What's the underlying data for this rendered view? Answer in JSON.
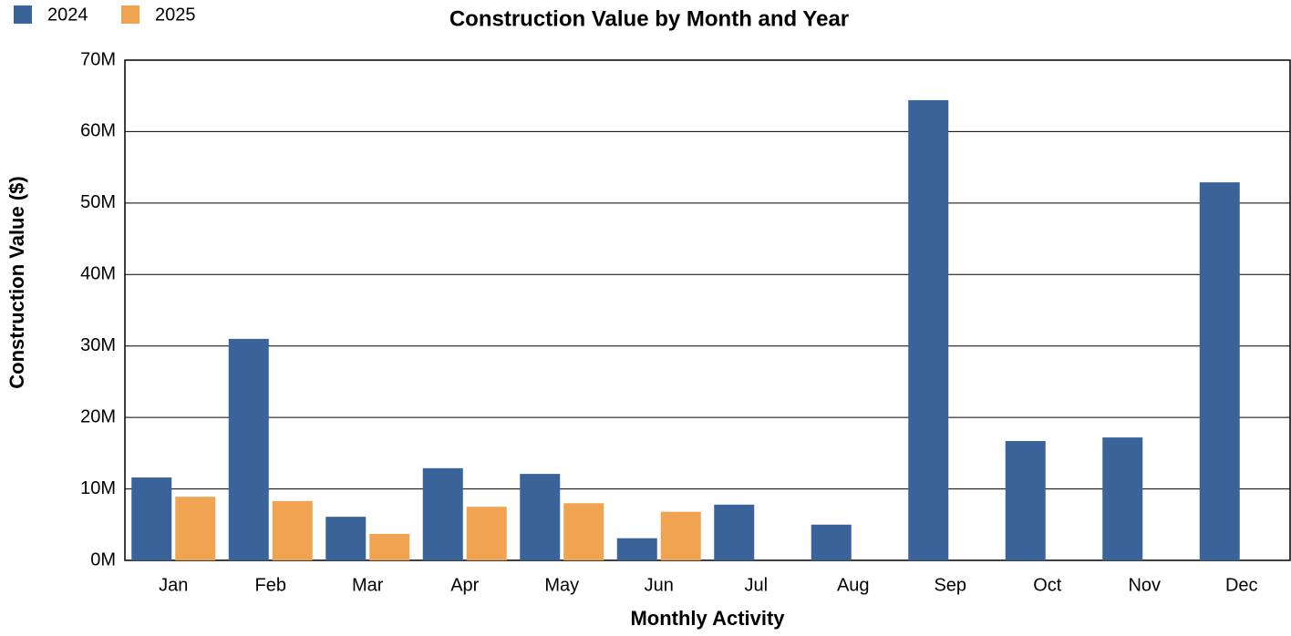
{
  "chart_data": {
    "type": "bar",
    "title": "Construction Value by Month and Year",
    "x_label": "Monthly Activity",
    "y_label": "Construction Value ($)",
    "categories": [
      "Jan",
      "Feb",
      "Mar",
      "Apr",
      "May",
      "Jun",
      "Jul",
      "Aug",
      "Sep",
      "Oct",
      "Nov",
      "Dec"
    ],
    "series": [
      {
        "name": "2024",
        "color": "#3a6399",
        "values": [
          11600000,
          31000000,
          6100000,
          12900000,
          12100000,
          3100000,
          7800000,
          5000000,
          64400000,
          16700000,
          17200000,
          52900000
        ]
      },
      {
        "name": "2025",
        "color": "#f0a452",
        "values": [
          8900000,
          8300000,
          3700000,
          7500000,
          8000000,
          6800000,
          null,
          null,
          null,
          null,
          null,
          null
        ]
      }
    ],
    "ylim": [
      0,
      70000000
    ],
    "yticks": [
      {
        "value": 0,
        "label": "0M"
      },
      {
        "value": 10000000,
        "label": "10M"
      },
      {
        "value": 20000000,
        "label": "20M"
      },
      {
        "value": 30000000,
        "label": "30M"
      },
      {
        "value": 40000000,
        "label": "40M"
      },
      {
        "value": 50000000,
        "label": "50M"
      },
      {
        "value": 60000000,
        "label": "60M"
      },
      {
        "value": 70000000,
        "label": "70M"
      }
    ],
    "grid": true,
    "legend": "top-left"
  }
}
